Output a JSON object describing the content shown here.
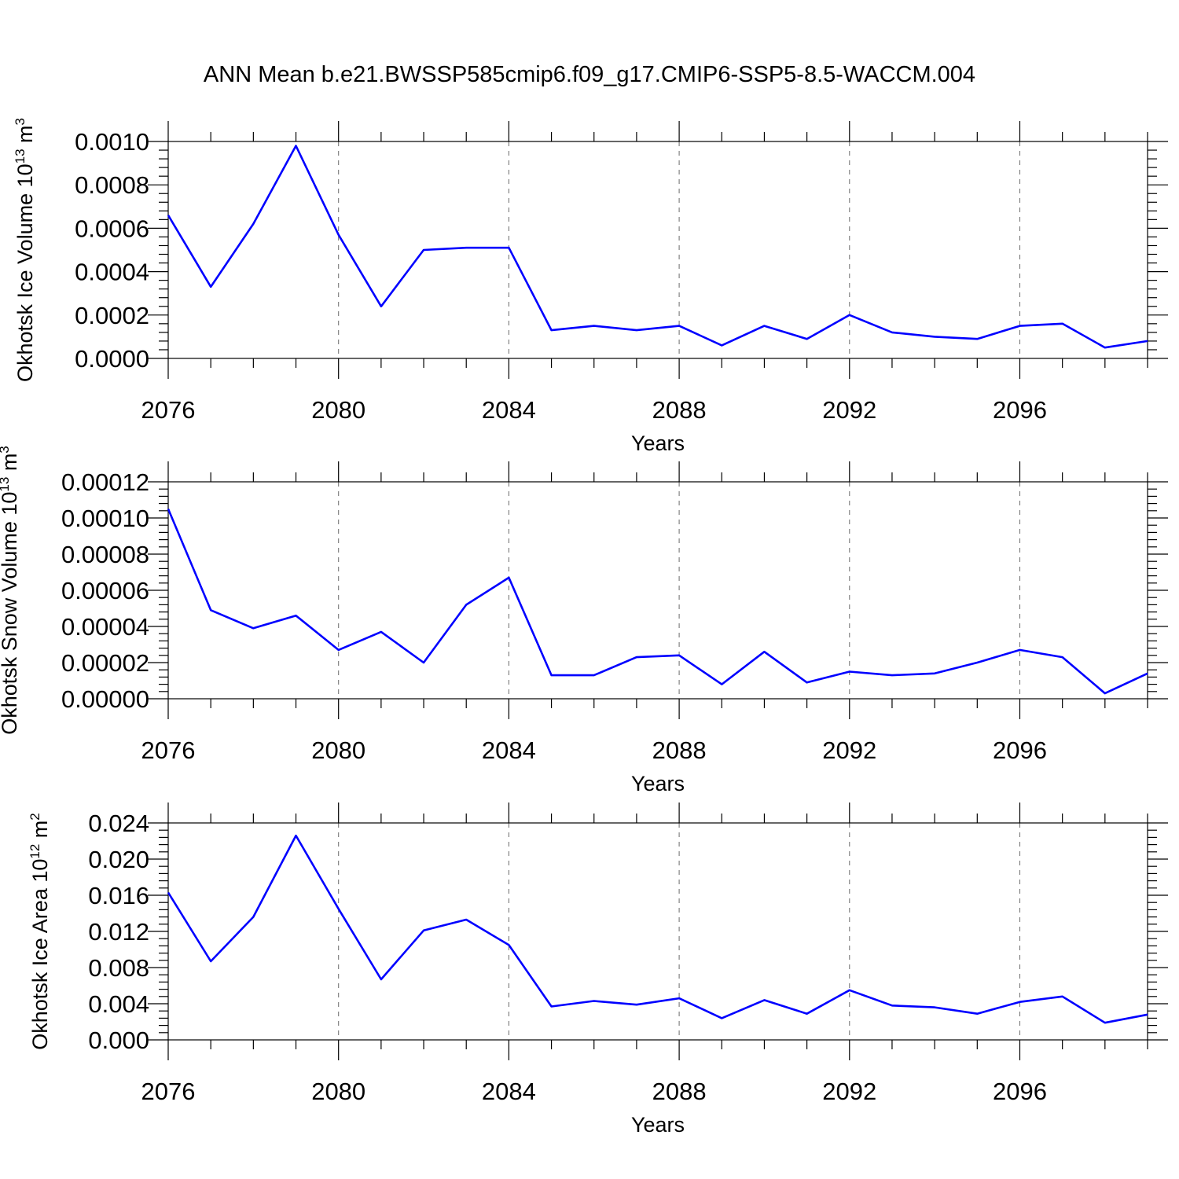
{
  "title": "ANN Mean b.e21.BWSSP585cmip6.f09_g17.CMIP6-SSP5-8.5-WACCM.004",
  "chart_data": [
    {
      "type": "line",
      "xlabel": "Years",
      "ylabel": {
        "text": "Okhotsk Ice Volume 10",
        "exponent": "13",
        "unit": " m",
        "unit_exponent": "3"
      },
      "xlim": [
        2076,
        2099
      ],
      "ylim": [
        0,
        0.001
      ],
      "x_ticks": [
        "2076",
        "2080",
        "2084",
        "2088",
        "2092",
        "2096"
      ],
      "y_ticks": [
        "0.0000",
        "0.0002",
        "0.0004",
        "0.0006",
        "0.0008",
        "0.0010"
      ],
      "grid": "vertical dashed at major x ticks",
      "color": "#0000ff",
      "x": [
        2076,
        2077,
        2078,
        2079,
        2080,
        2081,
        2082,
        2083,
        2084,
        2085,
        2086,
        2087,
        2088,
        2089,
        2090,
        2091,
        2092,
        2093,
        2094,
        2095,
        2096,
        2097,
        2098,
        2099
      ],
      "y": [
        0.00066,
        0.00033,
        0.00062,
        0.00098,
        0.00057,
        0.00024,
        0.0005,
        0.00051,
        0.00051,
        0.00013,
        0.00015,
        0.00013,
        0.00015,
        6e-05,
        0.00015,
        9e-05,
        0.0002,
        0.00012,
        0.0001,
        9e-05,
        0.00015,
        0.00016,
        5e-05,
        8e-05
      ]
    },
    {
      "type": "line",
      "xlabel": "Years",
      "ylabel": {
        "text": "Okhotsk Snow Volume 10",
        "exponent": "13",
        "unit": " m",
        "unit_exponent": "3"
      },
      "xlim": [
        2076,
        2099
      ],
      "ylim": [
        0,
        0.00012
      ],
      "x_ticks": [
        "2076",
        "2080",
        "2084",
        "2088",
        "2092",
        "2096"
      ],
      "y_ticks": [
        "0.00000",
        "0.00002",
        "0.00004",
        "0.00006",
        "0.00008",
        "0.00010",
        "0.00012"
      ],
      "grid": "vertical dashed at major x ticks",
      "color": "#0000ff",
      "x": [
        2076,
        2077,
        2078,
        2079,
        2080,
        2081,
        2082,
        2083,
        2084,
        2085,
        2086,
        2087,
        2088,
        2089,
        2090,
        2091,
        2092,
        2093,
        2094,
        2095,
        2096,
        2097,
        2098,
        2099
      ],
      "y": [
        0.000105,
        4.9e-05,
        3.9e-05,
        4.6e-05,
        2.7e-05,
        3.7e-05,
        2e-05,
        5.2e-05,
        6.7e-05,
        1.3e-05,
        1.3e-05,
        2.3e-05,
        2.4e-05,
        8e-06,
        2.6e-05,
        9e-06,
        1.5e-05,
        1.3e-05,
        1.4e-05,
        2e-05,
        2.7e-05,
        2.3e-05,
        3e-06,
        1.4e-05
      ]
    },
    {
      "type": "line",
      "xlabel": "Years",
      "ylabel": {
        "text": "Okhotsk Ice Area 10",
        "exponent": "12",
        "unit": " m",
        "unit_exponent": "2"
      },
      "xlim": [
        2076,
        2099
      ],
      "ylim": [
        0,
        0.024
      ],
      "x_ticks": [
        "2076",
        "2080",
        "2084",
        "2088",
        "2092",
        "2096"
      ],
      "y_ticks": [
        "0.000",
        "0.004",
        "0.008",
        "0.012",
        "0.016",
        "0.020",
        "0.024"
      ],
      "grid": "vertical dashed at major x ticks",
      "color": "#0000ff",
      "x": [
        2076,
        2077,
        2078,
        2079,
        2080,
        2081,
        2082,
        2083,
        2084,
        2085,
        2086,
        2087,
        2088,
        2089,
        2090,
        2091,
        2092,
        2093,
        2094,
        2095,
        2096,
        2097,
        2098,
        2099
      ],
      "y": [
        0.0163,
        0.0087,
        0.0136,
        0.0226,
        0.0145,
        0.0067,
        0.0121,
        0.0133,
        0.0105,
        0.0037,
        0.0043,
        0.0039,
        0.0046,
        0.0024,
        0.0044,
        0.0029,
        0.0055,
        0.0038,
        0.0036,
        0.0029,
        0.0042,
        0.0048,
        0.0019,
        0.0028
      ]
    }
  ]
}
